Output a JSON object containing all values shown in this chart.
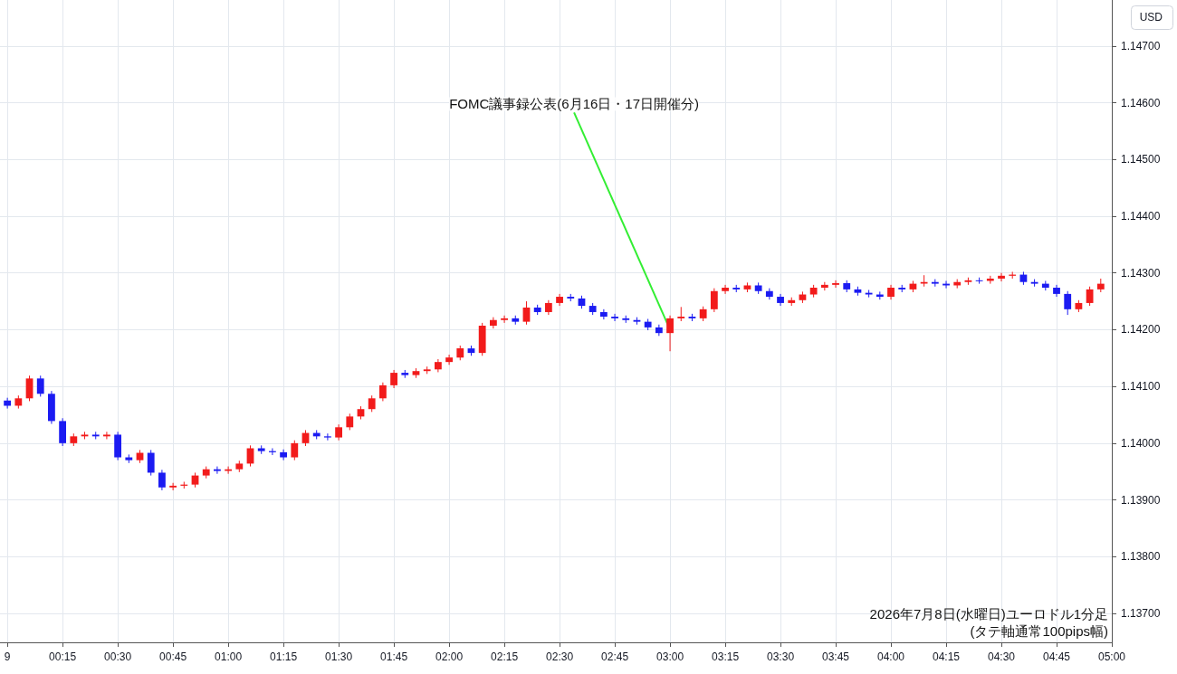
{
  "chart_data": {
    "type": "candlestick",
    "ylabel": "USD",
    "x": [
      "2026-07-09T00:00",
      "2026-07-09T00:03",
      "2026-07-09T00:06",
      "2026-07-09T00:09",
      "2026-07-09T00:12",
      "2026-07-09T00:15",
      "2026-07-09T00:18",
      "2026-07-09T00:21",
      "2026-07-09T00:24",
      "2026-07-09T00:27",
      "2026-07-09T00:30",
      "2026-07-09T00:33",
      "2026-07-09T00:36",
      "2026-07-09T00:39",
      "2026-07-09T00:42",
      "2026-07-09T00:45",
      "2026-07-09T00:48",
      "2026-07-09T00:51",
      "2026-07-09T00:54",
      "2026-07-09T00:57",
      "2026-07-09T01:00",
      "2026-07-09T01:03",
      "2026-07-09T01:06",
      "2026-07-09T01:09",
      "2026-07-09T01:12",
      "2026-07-09T01:15",
      "2026-07-09T01:18",
      "2026-07-09T01:21",
      "2026-07-09T01:24",
      "2026-07-09T01:27",
      "2026-07-09T01:30",
      "2026-07-09T01:33",
      "2026-07-09T01:36",
      "2026-07-09T01:39",
      "2026-07-09T01:42",
      "2026-07-09T01:45",
      "2026-07-09T01:48",
      "2026-07-09T01:51",
      "2026-07-09T01:54",
      "2026-07-09T01:57",
      "2026-07-09T02:00",
      "2026-07-09T02:03",
      "2026-07-09T02:06",
      "2026-07-09T02:09",
      "2026-07-09T02:12",
      "2026-07-09T02:15",
      "2026-07-09T02:18",
      "2026-07-09T02:21",
      "2026-07-09T02:24",
      "2026-07-09T02:27",
      "2026-07-09T02:30",
      "2026-07-09T02:33",
      "2026-07-09T02:36",
      "2026-07-09T02:39",
      "2026-07-09T02:42",
      "2026-07-09T02:45",
      "2026-07-09T02:48",
      "2026-07-09T02:51",
      "2026-07-09T02:54",
      "2026-07-09T02:57",
      "2026-07-09T03:00",
      "2026-07-09T03:03",
      "2026-07-09T03:06",
      "2026-07-09T03:09",
      "2026-07-09T03:12",
      "2026-07-09T03:15",
      "2026-07-09T03:18",
      "2026-07-09T03:21",
      "2026-07-09T03:24",
      "2026-07-09T03:27",
      "2026-07-09T03:30",
      "2026-07-09T03:33",
      "2026-07-09T03:36",
      "2026-07-09T03:39",
      "2026-07-09T03:42",
      "2026-07-09T03:45",
      "2026-07-09T03:48",
      "2026-07-09T03:51",
      "2026-07-09T03:54",
      "2026-07-09T03:57",
      "2026-07-09T04:00",
      "2026-07-09T04:03",
      "2026-07-09T04:06",
      "2026-07-09T04:09",
      "2026-07-09T04:12",
      "2026-07-09T04:15",
      "2026-07-09T04:18",
      "2026-07-09T04:21",
      "2026-07-09T04:24",
      "2026-07-09T04:27",
      "2026-07-09T04:30",
      "2026-07-09T04:33",
      "2026-07-09T04:36",
      "2026-07-09T04:39",
      "2026-07-09T04:42",
      "2026-07-09T04:45",
      "2026-07-09T04:48",
      "2026-07-09T04:51",
      "2026-07-09T04:54",
      "2026-07-09T04:57"
    ],
    "ohlc": [
      [
        1.14075,
        1.1408,
        1.14061,
        1.14066
      ],
      [
        1.14066,
        1.14084,
        1.14061,
        1.14079
      ],
      [
        1.14079,
        1.14119,
        1.14074,
        1.14114
      ],
      [
        1.14114,
        1.14119,
        1.14082,
        1.14087
      ],
      [
        1.14087,
        1.14092,
        1.14034,
        1.14039
      ],
      [
        1.14039,
        1.14044,
        1.13995,
        1.14
      ],
      [
        1.14,
        1.14017,
        1.13995,
        1.14012
      ],
      [
        1.14012,
        1.1402,
        1.14007,
        1.14015
      ],
      [
        1.14015,
        1.1402,
        1.14007,
        1.14012
      ],
      [
        1.14012,
        1.1402,
        1.14007,
        1.14015
      ],
      [
        1.14015,
        1.1402,
        1.1397,
        1.13975
      ],
      [
        1.13975,
        1.1398,
        1.13965,
        1.1397
      ],
      [
        1.1397,
        1.13988,
        1.13965,
        1.13983
      ],
      [
        1.13983,
        1.13988,
        1.13943,
        1.13948
      ],
      [
        1.13948,
        1.13953,
        1.13917,
        1.13922
      ],
      [
        1.13922,
        1.1393,
        1.13917,
        1.13925
      ],
      [
        1.13925,
        1.13932,
        1.1392,
        1.13927
      ],
      [
        1.13927,
        1.13948,
        1.13922,
        1.13943
      ],
      [
        1.13943,
        1.13959,
        1.13938,
        1.13954
      ],
      [
        1.13954,
        1.13959,
        1.13946,
        1.13951
      ],
      [
        1.13951,
        1.13959,
        1.13946,
        1.13954
      ],
      [
        1.13954,
        1.13969,
        1.13949,
        1.13964
      ],
      [
        1.13964,
        1.13996,
        1.13959,
        1.13991
      ],
      [
        1.13991,
        1.13996,
        1.13981,
        1.13986
      ],
      [
        1.13986,
        1.13991,
        1.13979,
        1.13984
      ],
      [
        1.13984,
        1.13989,
        1.1397,
        1.13975
      ],
      [
        1.13975,
        1.14005,
        1.1397,
        1.14
      ],
      [
        1.14,
        1.14023,
        1.13995,
        1.14018
      ],
      [
        1.14018,
        1.14023,
        1.14007,
        1.14012
      ],
      [
        1.14012,
        1.14017,
        1.14005,
        1.1401
      ],
      [
        1.1401,
        1.14033,
        1.14005,
        1.14028
      ],
      [
        1.14028,
        1.14052,
        1.14023,
        1.14047
      ],
      [
        1.14047,
        1.14065,
        1.14042,
        1.1406
      ],
      [
        1.1406,
        1.14084,
        1.14055,
        1.14079
      ],
      [
        1.14079,
        1.14107,
        1.14074,
        1.14102
      ],
      [
        1.14102,
        1.14129,
        1.14097,
        1.14124
      ],
      [
        1.14124,
        1.14129,
        1.14115,
        1.1412
      ],
      [
        1.1412,
        1.14132,
        1.14115,
        1.14127
      ],
      [
        1.14127,
        1.14135,
        1.14122,
        1.1413
      ],
      [
        1.1413,
        1.14148,
        1.14125,
        1.14143
      ],
      [
        1.14143,
        1.14156,
        1.14138,
        1.14151
      ],
      [
        1.14151,
        1.14172,
        1.14146,
        1.14167
      ],
      [
        1.14167,
        1.14172,
        1.14154,
        1.14159
      ],
      [
        1.14159,
        1.14212,
        1.14154,
        1.14207
      ],
      [
        1.14207,
        1.14222,
        1.14202,
        1.14217
      ],
      [
        1.14217,
        1.14225,
        1.14212,
        1.1422
      ],
      [
        1.1422,
        1.14225,
        1.14209,
        1.14214
      ],
      [
        1.14214,
        1.1425,
        1.14209,
        1.14239
      ],
      [
        1.14239,
        1.14244,
        1.14226,
        1.14231
      ],
      [
        1.14231,
        1.14252,
        1.14226,
        1.14247
      ],
      [
        1.14247,
        1.14263,
        1.14242,
        1.14258
      ],
      [
        1.14258,
        1.14263,
        1.1425,
        1.14255
      ],
      [
        1.14255,
        1.1426,
        1.14237,
        1.14242
      ],
      [
        1.14242,
        1.14247,
        1.14226,
        1.14231
      ],
      [
        1.14231,
        1.14236,
        1.14218,
        1.14223
      ],
      [
        1.14223,
        1.14228,
        1.14215,
        1.1422
      ],
      [
        1.1422,
        1.14225,
        1.14212,
        1.14217
      ],
      [
        1.14217,
        1.14222,
        1.14209,
        1.14214
      ],
      [
        1.14214,
        1.14219,
        1.14199,
        1.14204
      ],
      [
        1.14204,
        1.14209,
        1.14189,
        1.14194
      ],
      [
        1.14194,
        1.14225,
        1.14162,
        1.1422
      ],
      [
        1.1422,
        1.1424,
        1.14215,
        1.14223
      ],
      [
        1.14223,
        1.14228,
        1.14215,
        1.1422
      ],
      [
        1.1422,
        1.14241,
        1.14215,
        1.14236
      ],
      [
        1.14236,
        1.14273,
        1.14231,
        1.14268
      ],
      [
        1.14268,
        1.14279,
        1.14263,
        1.14274
      ],
      [
        1.14274,
        1.14279,
        1.14266,
        1.14271
      ],
      [
        1.14271,
        1.14283,
        1.14266,
        1.14278
      ],
      [
        1.14278,
        1.14283,
        1.14263,
        1.14268
      ],
      [
        1.14268,
        1.14273,
        1.14253,
        1.14258
      ],
      [
        1.14258,
        1.14263,
        1.14242,
        1.14247
      ],
      [
        1.14247,
        1.14257,
        1.14242,
        1.14252
      ],
      [
        1.14252,
        1.14267,
        1.14247,
        1.14262
      ],
      [
        1.14262,
        1.14279,
        1.14257,
        1.14274
      ],
      [
        1.14274,
        1.14284,
        1.14269,
        1.14279
      ],
      [
        1.14279,
        1.14287,
        1.14274,
        1.14282
      ],
      [
        1.14282,
        1.14287,
        1.14266,
        1.14271
      ],
      [
        1.14271,
        1.14276,
        1.1426,
        1.14265
      ],
      [
        1.14265,
        1.1427,
        1.14257,
        1.14262
      ],
      [
        1.14262,
        1.14267,
        1.14253,
        1.14258
      ],
      [
        1.14258,
        1.14279,
        1.14253,
        1.14274
      ],
      [
        1.14274,
        1.14279,
        1.14266,
        1.14271
      ],
      [
        1.14271,
        1.14286,
        1.14266,
        1.14281
      ],
      [
        1.14281,
        1.14296,
        1.14276,
        1.14284
      ],
      [
        1.14284,
        1.14289,
        1.14276,
        1.14281
      ],
      [
        1.14281,
        1.14286,
        1.14273,
        1.14278
      ],
      [
        1.14278,
        1.14289,
        1.14273,
        1.14284
      ],
      [
        1.14284,
        1.14292,
        1.14279,
        1.14287
      ],
      [
        1.14287,
        1.14292,
        1.14281,
        1.14286
      ],
      [
        1.14286,
        1.14295,
        1.14281,
        1.1429
      ],
      [
        1.1429,
        1.143,
        1.14285,
        1.14295
      ],
      [
        1.14295,
        1.14302,
        1.1429,
        1.14297
      ],
      [
        1.14297,
        1.14302,
        1.14279,
        1.14284
      ],
      [
        1.14284,
        1.14289,
        1.14276,
        1.14281
      ],
      [
        1.14281,
        1.14286,
        1.14269,
        1.14274
      ],
      [
        1.14274,
        1.14279,
        1.14258,
        1.14263
      ],
      [
        1.14263,
        1.14268,
        1.14226,
        1.14236
      ],
      [
        1.14236,
        1.14252,
        1.14231,
        1.14247
      ],
      [
        1.14247,
        1.14276,
        1.14242,
        1.14271
      ],
      [
        1.14271,
        1.1429,
        1.14266,
        1.14281
      ]
    ],
    "colors": [
      "#1b1bf2",
      "#f21b1b",
      "#f21b1b",
      "#1b1bf2",
      "#1b1bf2",
      "#1b1bf2",
      "#f21b1b",
      "#f21b1b",
      "#1b1bf2",
      "#f21b1b",
      "#1b1bf2",
      "#1b1bf2",
      "#f21b1b",
      "#1b1bf2",
      "#1b1bf2",
      "#f21b1b",
      "#f21b1b",
      "#f21b1b",
      "#f21b1b",
      "#1b1bf2",
      "#f21b1b",
      "#f21b1b",
      "#f21b1b",
      "#1b1bf2",
      "#1b1bf2",
      "#1b1bf2",
      "#f21b1b",
      "#f21b1b",
      "#1b1bf2",
      "#1b1bf2",
      "#f21b1b",
      "#f21b1b",
      "#f21b1b",
      "#f21b1b",
      "#f21b1b",
      "#f21b1b",
      "#1b1bf2",
      "#f21b1b",
      "#f21b1b",
      "#f21b1b",
      "#f21b1b",
      "#f21b1b",
      "#1b1bf2",
      "#f21b1b",
      "#f21b1b",
      "#f21b1b",
      "#1b1bf2",
      "#f21b1b",
      "#1b1bf2",
      "#f21b1b",
      "#f21b1b",
      "#1b1bf2",
      "#1b1bf2",
      "#1b1bf2",
      "#1b1bf2",
      "#1b1bf2",
      "#1b1bf2",
      "#1b1bf2",
      "#1b1bf2",
      "#1b1bf2",
      "#f21b1b",
      "#f21b1b",
      "#1b1bf2",
      "#f21b1b",
      "#f21b1b",
      "#f21b1b",
      "#1b1bf2",
      "#f21b1b",
      "#1b1bf2",
      "#1b1bf2",
      "#1b1bf2",
      "#f21b1b",
      "#f21b1b",
      "#f21b1b",
      "#f21b1b",
      "#f21b1b",
      "#1b1bf2",
      "#1b1bf2",
      "#1b1bf2",
      "#1b1bf2",
      "#f21b1b",
      "#1b1bf2",
      "#f21b1b",
      "#f21b1b",
      "#1b1bf2",
      "#1b1bf2",
      "#f21b1b",
      "#f21b1b",
      "#1b1bf2",
      "#f21b1b",
      "#f21b1b",
      "#f21b1b",
      "#1b1bf2",
      "#1b1bf2",
      "#1b1bf2",
      "#1b1bf2",
      "#1b1bf2",
      "#f21b1b",
      "#f21b1b",
      "#f21b1b"
    ],
    "xlim": [
      "2026-07-08T23:58",
      "2026-07-09T05:00"
    ],
    "xticks": [
      {
        "value": "2026-07-09T00:00",
        "label": "9"
      },
      {
        "value": "2026-07-09T00:15",
        "label": "00:15"
      },
      {
        "value": "2026-07-09T00:30",
        "label": "00:30"
      },
      {
        "value": "2026-07-09T00:45",
        "label": "00:45"
      },
      {
        "value": "2026-07-09T01:00",
        "label": "01:00"
      },
      {
        "value": "2026-07-09T01:15",
        "label": "01:15"
      },
      {
        "value": "2026-07-09T01:30",
        "label": "01:30"
      },
      {
        "value": "2026-07-09T01:45",
        "label": "01:45"
      },
      {
        "value": "2026-07-09T02:00",
        "label": "02:00"
      },
      {
        "value": "2026-07-09T02:15",
        "label": "02:15"
      },
      {
        "value": "2026-07-09T02:30",
        "label": "02:30"
      },
      {
        "value": "2026-07-09T02:45",
        "label": "02:45"
      },
      {
        "value": "2026-07-09T03:00",
        "label": "03:00"
      },
      {
        "value": "2026-07-09T03:15",
        "label": "03:15"
      },
      {
        "value": "2026-07-09T03:30",
        "label": "03:30"
      },
      {
        "value": "2026-07-09T03:45",
        "label": "03:45"
      },
      {
        "value": "2026-07-09T04:00",
        "label": "04:00"
      },
      {
        "value": "2026-07-09T04:15",
        "label": "04:15"
      },
      {
        "value": "2026-07-09T04:30",
        "label": "04:30"
      },
      {
        "value": "2026-07-09T04:45",
        "label": "04:45"
      },
      {
        "value": "2026-07-09T05:00",
        "label": "05:00"
      }
    ],
    "ylim": [
      1.13649,
      1.14781
    ],
    "yticks": [
      {
        "value": 1.137,
        "label": "1.13700"
      },
      {
        "value": 1.138,
        "label": "1.13800"
      },
      {
        "value": 1.139,
        "label": "1.13900"
      },
      {
        "value": 1.14,
        "label": "1.14000"
      },
      {
        "value": 1.141,
        "label": "1.14100"
      },
      {
        "value": 1.142,
        "label": "1.14200"
      },
      {
        "value": 1.143,
        "label": "1.14300"
      },
      {
        "value": 1.144,
        "label": "1.14400"
      },
      {
        "value": 1.145,
        "label": "1.14500"
      },
      {
        "value": 1.146,
        "label": "1.14600"
      },
      {
        "value": 1.147,
        "label": "1.14700"
      }
    ],
    "grid": true,
    "annotations": [
      {
        "text": "FOMC議事録公表(6月16日・17日開催分)",
        "x": "2026-07-09T03:00",
        "y": 1.142
      },
      "2026年7月8日(水曜日)ユーロドル1分足",
      "(タテ軸通常100pips幅)"
    ]
  }
}
